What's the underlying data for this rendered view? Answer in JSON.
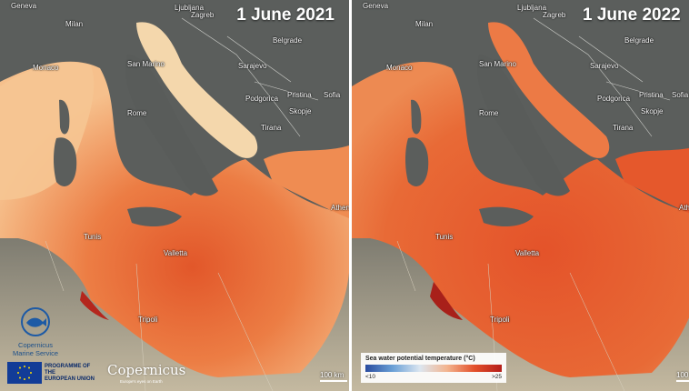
{
  "panels": [
    {
      "date": "1 June 2021",
      "cities": [
        "Geneva",
        "Ljubljana",
        "Zagreb",
        "Milan",
        "Belgrade",
        "Monaco",
        "San Marino",
        "Sarajevo",
        "Sofia",
        "Podgorica",
        "Pristina",
        "Rome",
        "Skopje",
        "Tirana",
        "Athens",
        "Tunis",
        "Valletta",
        "Tripoli"
      ],
      "scale_label": "100 km"
    },
    {
      "date": "1 June 2022",
      "cities": [
        "Geneva",
        "Ljubljana",
        "Zagreb",
        "Milan",
        "Belgrade",
        "Monaco",
        "San Marino",
        "Sarajevo",
        "Sofia",
        "Podgorica",
        "Pristina",
        "Rome",
        "Skopje",
        "Tirana",
        "Ath",
        "Tunis",
        "Valletta",
        "Tripoli"
      ],
      "scale_label": "100"
    }
  ],
  "legend": {
    "title": "Sea water potential temperature  (°C)",
    "min_label": "<10",
    "max_label": ">25"
  },
  "logos": {
    "cms_line1": "Copernicus",
    "cms_line2": "Marine Service",
    "eu_line1": "PROGRAMME OF THE",
    "eu_line2": "EUROPEAN UNION",
    "copernicus_name": "Copernicus",
    "copernicus_tag": "Europe's eyes on Earth"
  },
  "colors": {
    "land": "#5c5f5e",
    "land_south": "#9c9582",
    "sea_warm": "#e8652e",
    "sea_cool": "#f7c79b",
    "sea_hot": "#c23220",
    "border": "#cfd0cc"
  }
}
